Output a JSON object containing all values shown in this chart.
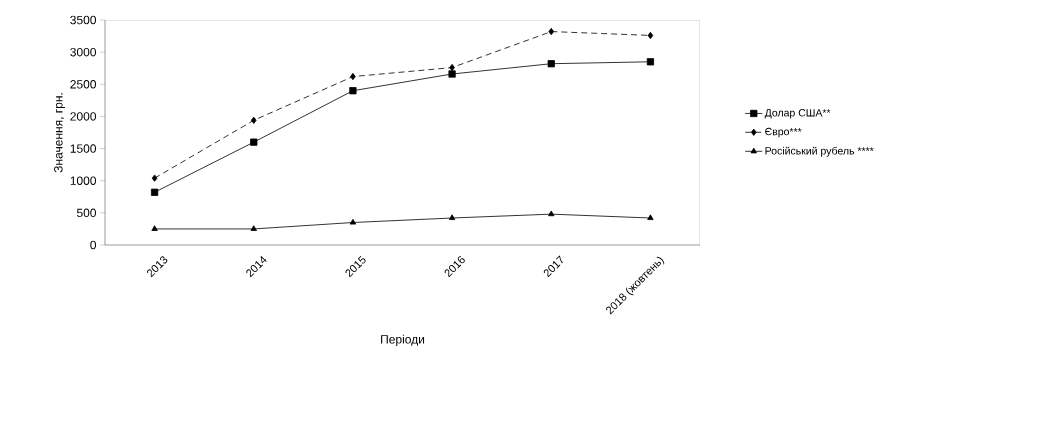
{
  "chart_data": {
    "type": "line",
    "xlabel": "Періоди",
    "ylabel": "Значення, грн.",
    "categories": [
      "2013",
      "2014",
      "2015",
      "2016",
      "2017",
      "2018 (жовтень)"
    ],
    "series": [
      {
        "name": "Долар США**",
        "color": "#000000",
        "marker": "square",
        "line_style": "solid",
        "values": [
          820,
          1600,
          2400,
          2660,
          2820,
          2850
        ]
      },
      {
        "name": "Євро***",
        "color": "#000000",
        "marker": "diamond",
        "line_style": "dashed",
        "values": [
          1040,
          1940,
          2620,
          2760,
          3320,
          3260
        ]
      },
      {
        "name": "Російський рубель ****",
        "color": "#000000",
        "marker": "triangle",
        "line_style": "solid",
        "values": [
          250,
          250,
          350,
          420,
          480,
          420
        ]
      }
    ],
    "ylim": [
      0,
      3500
    ],
    "yticks": [
      0,
      500,
      1000,
      1500,
      2000,
      2500,
      3000,
      3500
    ],
    "grid": false,
    "legend": "right"
  }
}
